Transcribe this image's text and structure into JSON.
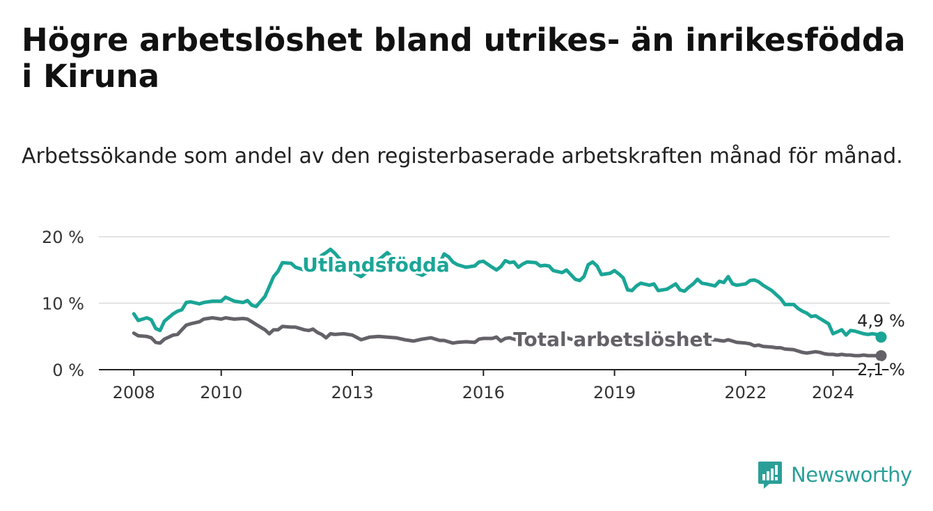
{
  "header": {
    "title": "Högre arbetslöshet bland utrikes- än inrikesfödda i Kiruna",
    "subtitle": "Arbetssökande som andel av den registerbaserade arbetskraften månad för månad."
  },
  "brand": {
    "name": "Newsworthy",
    "icon": "newsworthy-logo-icon",
    "color": "#2a9f98"
  },
  "chart_data": {
    "type": "line",
    "x_unit": "year (decimal)",
    "xlim": [
      2007.2,
      2025.3
    ],
    "ylim": [
      0,
      20
    ],
    "y_ticks": [
      0,
      10,
      20
    ],
    "y_tick_labels": [
      "0 %",
      "10 %",
      "20 %"
    ],
    "x_ticks": [
      2008,
      2010,
      2013,
      2016,
      2019,
      2022,
      2024
    ],
    "x_tick_labels": [
      "2008",
      "2010",
      "2013",
      "2016",
      "2019",
      "2022",
      "2024"
    ],
    "grid": "horizontal",
    "series": [
      {
        "name": "Utlandsfödda",
        "color": "#1aa596",
        "end_label": "4,9 %",
        "points": [
          [
            2008.0,
            8.4
          ],
          [
            2008.1,
            7.4
          ],
          [
            2008.3,
            7.8
          ],
          [
            2008.4,
            7.5
          ],
          [
            2008.5,
            6.2
          ],
          [
            2008.6,
            5.9
          ],
          [
            2008.7,
            7.3
          ],
          [
            2008.9,
            8.4
          ],
          [
            2009.0,
            8.8
          ],
          [
            2009.1,
            9.0
          ],
          [
            2009.2,
            10.1
          ],
          [
            2009.3,
            10.2
          ],
          [
            2009.5,
            9.9
          ],
          [
            2009.6,
            10.1
          ],
          [
            2009.8,
            10.3
          ],
          [
            2010.0,
            10.3
          ],
          [
            2010.1,
            10.9
          ],
          [
            2010.2,
            10.6
          ],
          [
            2010.3,
            10.3
          ],
          [
            2010.5,
            10.1
          ],
          [
            2010.6,
            10.4
          ],
          [
            2010.7,
            9.7
          ],
          [
            2010.8,
            9.5
          ],
          [
            2011.0,
            11.0
          ],
          [
            2011.1,
            12.5
          ],
          [
            2011.2,
            14.0
          ],
          [
            2011.3,
            14.8
          ],
          [
            2011.4,
            16.1
          ],
          [
            2011.6,
            16.0
          ],
          [
            2011.7,
            15.4
          ],
          [
            2011.9,
            15.0
          ],
          [
            2012.0,
            14.8
          ],
          [
            2012.1,
            15.4
          ],
          [
            2012.2,
            16.3
          ],
          [
            2012.3,
            17.2
          ],
          [
            2012.4,
            17.6
          ],
          [
            2012.5,
            18.1
          ],
          [
            2012.6,
            17.5
          ],
          [
            2012.8,
            16.0
          ],
          [
            2013.0,
            14.7
          ],
          [
            2013.2,
            14.0
          ],
          [
            2013.4,
            15.0
          ],
          [
            2013.6,
            16.5
          ],
          [
            2013.8,
            17.6
          ],
          [
            2014.0,
            16.3
          ],
          [
            2014.2,
            15.5
          ],
          [
            2014.4,
            14.7
          ],
          [
            2014.6,
            14.2
          ],
          [
            2014.8,
            15.0
          ],
          [
            2015.0,
            16.0
          ],
          [
            2015.1,
            17.4
          ],
          [
            2015.2,
            17.0
          ],
          [
            2015.3,
            16.2
          ],
          [
            2015.4,
            15.8
          ],
          [
            2015.6,
            15.4
          ],
          [
            2015.8,
            15.6
          ],
          [
            2015.9,
            16.2
          ],
          [
            2016.0,
            16.3
          ],
          [
            2016.2,
            15.4
          ],
          [
            2016.3,
            15.0
          ],
          [
            2016.4,
            15.5
          ],
          [
            2016.5,
            16.4
          ],
          [
            2016.6,
            16.1
          ],
          [
            2016.7,
            16.2
          ],
          [
            2016.8,
            15.4
          ],
          [
            2016.9,
            15.9
          ],
          [
            2017.0,
            16.2
          ],
          [
            2017.2,
            16.1
          ],
          [
            2017.3,
            15.6
          ],
          [
            2017.4,
            15.7
          ],
          [
            2017.5,
            15.6
          ],
          [
            2017.6,
            14.9
          ],
          [
            2017.8,
            14.6
          ],
          [
            2017.9,
            15.0
          ],
          [
            2018.1,
            13.6
          ],
          [
            2018.2,
            13.4
          ],
          [
            2018.3,
            14.0
          ],
          [
            2018.4,
            15.8
          ],
          [
            2018.5,
            16.2
          ],
          [
            2018.6,
            15.6
          ],
          [
            2018.7,
            14.3
          ],
          [
            2018.9,
            14.5
          ],
          [
            2019.0,
            14.9
          ],
          [
            2019.1,
            14.4
          ],
          [
            2019.2,
            13.8
          ],
          [
            2019.3,
            12.0
          ],
          [
            2019.4,
            11.9
          ],
          [
            2019.5,
            12.6
          ],
          [
            2019.6,
            13.0
          ],
          [
            2019.8,
            12.7
          ],
          [
            2019.9,
            12.9
          ],
          [
            2020.0,
            11.9
          ],
          [
            2020.2,
            12.1
          ],
          [
            2020.3,
            12.5
          ],
          [
            2020.4,
            12.9
          ],
          [
            2020.5,
            12.0
          ],
          [
            2020.6,
            11.8
          ],
          [
            2020.7,
            12.4
          ],
          [
            2020.8,
            12.9
          ],
          [
            2020.9,
            13.6
          ],
          [
            2021.0,
            13.0
          ],
          [
            2021.1,
            12.9
          ],
          [
            2021.3,
            12.6
          ],
          [
            2021.4,
            13.3
          ],
          [
            2021.5,
            13.1
          ],
          [
            2021.6,
            14.0
          ],
          [
            2021.7,
            12.9
          ],
          [
            2021.8,
            12.7
          ],
          [
            2022.0,
            12.9
          ],
          [
            2022.1,
            13.4
          ],
          [
            2022.2,
            13.5
          ],
          [
            2022.3,
            13.2
          ],
          [
            2022.4,
            12.7
          ],
          [
            2022.6,
            11.9
          ],
          [
            2022.7,
            11.3
          ],
          [
            2022.8,
            10.7
          ],
          [
            2022.9,
            9.8
          ],
          [
            2023.1,
            9.8
          ],
          [
            2023.2,
            9.2
          ],
          [
            2023.3,
            8.8
          ],
          [
            2023.4,
            8.5
          ],
          [
            2023.5,
            8.0
          ],
          [
            2023.6,
            8.1
          ],
          [
            2023.7,
            7.7
          ],
          [
            2023.8,
            7.3
          ],
          [
            2023.9,
            6.9
          ],
          [
            2024.0,
            5.4
          ],
          [
            2024.1,
            5.7
          ],
          [
            2024.2,
            6.0
          ],
          [
            2024.3,
            5.2
          ],
          [
            2024.4,
            5.9
          ],
          [
            2024.5,
            5.8
          ],
          [
            2024.6,
            5.6
          ],
          [
            2024.7,
            5.4
          ],
          [
            2024.8,
            5.3
          ],
          [
            2024.9,
            5.4
          ],
          [
            2025.0,
            5.3
          ],
          [
            2025.1,
            4.9
          ]
        ]
      },
      {
        "name": "Total arbetslöshet",
        "color": "#646268",
        "end_label": "2,1 %",
        "points": [
          [
            2008.0,
            5.5
          ],
          [
            2008.1,
            5.1
          ],
          [
            2008.3,
            5.0
          ],
          [
            2008.4,
            4.8
          ],
          [
            2008.5,
            4.1
          ],
          [
            2008.6,
            4.0
          ],
          [
            2008.7,
            4.6
          ],
          [
            2008.9,
            5.2
          ],
          [
            2009.0,
            5.3
          ],
          [
            2009.1,
            6.0
          ],
          [
            2009.2,
            6.7
          ],
          [
            2009.3,
            6.9
          ],
          [
            2009.5,
            7.2
          ],
          [
            2009.6,
            7.6
          ],
          [
            2009.8,
            7.8
          ],
          [
            2010.0,
            7.6
          ],
          [
            2010.1,
            7.8
          ],
          [
            2010.2,
            7.7
          ],
          [
            2010.3,
            7.6
          ],
          [
            2010.5,
            7.7
          ],
          [
            2010.6,
            7.6
          ],
          [
            2010.7,
            7.2
          ],
          [
            2010.8,
            6.8
          ],
          [
            2011.0,
            6.0
          ],
          [
            2011.1,
            5.4
          ],
          [
            2011.2,
            6.0
          ],
          [
            2011.3,
            6.0
          ],
          [
            2011.4,
            6.5
          ],
          [
            2011.6,
            6.4
          ],
          [
            2011.7,
            6.4
          ],
          [
            2011.9,
            6.0
          ],
          [
            2012.0,
            5.9
          ],
          [
            2012.1,
            6.1
          ],
          [
            2012.2,
            5.6
          ],
          [
            2012.3,
            5.3
          ],
          [
            2012.4,
            4.8
          ],
          [
            2012.5,
            5.4
          ],
          [
            2012.6,
            5.3
          ],
          [
            2012.8,
            5.4
          ],
          [
            2013.0,
            5.2
          ],
          [
            2013.2,
            4.5
          ],
          [
            2013.4,
            4.9
          ],
          [
            2013.6,
            5.0
          ],
          [
            2013.8,
            4.9
          ],
          [
            2014.0,
            4.8
          ],
          [
            2014.2,
            4.5
          ],
          [
            2014.4,
            4.3
          ],
          [
            2014.6,
            4.6
          ],
          [
            2014.8,
            4.8
          ],
          [
            2015.0,
            4.4
          ],
          [
            2015.1,
            4.4
          ],
          [
            2015.2,
            4.2
          ],
          [
            2015.3,
            4.0
          ],
          [
            2015.4,
            4.1
          ],
          [
            2015.6,
            4.2
          ],
          [
            2015.8,
            4.1
          ],
          [
            2015.9,
            4.6
          ],
          [
            2016.0,
            4.7
          ],
          [
            2016.2,
            4.7
          ],
          [
            2016.3,
            4.9
          ],
          [
            2016.4,
            4.3
          ],
          [
            2016.5,
            4.7
          ],
          [
            2016.6,
            4.8
          ],
          [
            2016.7,
            4.6
          ],
          [
            2016.8,
            4.4
          ],
          [
            2016.9,
            4.3
          ],
          [
            2017.0,
            4.6
          ],
          [
            2017.2,
            4.4
          ],
          [
            2017.3,
            4.5
          ],
          [
            2017.4,
            4.6
          ],
          [
            2017.5,
            4.7
          ],
          [
            2017.6,
            4.8
          ],
          [
            2017.8,
            4.7
          ],
          [
            2017.9,
            4.8
          ],
          [
            2018.1,
            4.4
          ],
          [
            2018.2,
            4.5
          ],
          [
            2018.3,
            4.6
          ],
          [
            2018.4,
            4.5
          ],
          [
            2018.5,
            4.8
          ],
          [
            2018.6,
            4.9
          ],
          [
            2018.7,
            4.6
          ],
          [
            2018.9,
            4.7
          ],
          [
            2019.0,
            4.7
          ],
          [
            2019.1,
            4.6
          ],
          [
            2019.2,
            4.5
          ],
          [
            2019.3,
            4.4
          ],
          [
            2019.4,
            4.5
          ],
          [
            2019.5,
            4.4
          ],
          [
            2019.6,
            4.3
          ],
          [
            2019.8,
            4.4
          ],
          [
            2019.9,
            4.5
          ],
          [
            2020.0,
            4.4
          ],
          [
            2020.2,
            4.3
          ],
          [
            2020.3,
            4.3
          ],
          [
            2020.4,
            4.2
          ],
          [
            2020.5,
            4.3
          ],
          [
            2020.6,
            4.4
          ],
          [
            2020.7,
            4.3
          ],
          [
            2020.8,
            4.4
          ],
          [
            2020.9,
            4.5
          ],
          [
            2021.0,
            4.3
          ],
          [
            2021.1,
            4.4
          ],
          [
            2021.3,
            4.5
          ],
          [
            2021.4,
            4.4
          ],
          [
            2021.5,
            4.3
          ],
          [
            2021.6,
            4.5
          ],
          [
            2021.7,
            4.3
          ],
          [
            2021.8,
            4.1
          ],
          [
            2022.0,
            4.0
          ],
          [
            2022.1,
            3.9
          ],
          [
            2022.2,
            3.6
          ],
          [
            2022.3,
            3.7
          ],
          [
            2022.4,
            3.5
          ],
          [
            2022.6,
            3.4
          ],
          [
            2022.7,
            3.3
          ],
          [
            2022.8,
            3.3
          ],
          [
            2022.9,
            3.1
          ],
          [
            2023.1,
            3.0
          ],
          [
            2023.2,
            2.8
          ],
          [
            2023.3,
            2.6
          ],
          [
            2023.4,
            2.5
          ],
          [
            2023.5,
            2.6
          ],
          [
            2023.6,
            2.7
          ],
          [
            2023.7,
            2.6
          ],
          [
            2023.8,
            2.4
          ],
          [
            2023.9,
            2.3
          ],
          [
            2024.0,
            2.3
          ],
          [
            2024.1,
            2.2
          ],
          [
            2024.2,
            2.3
          ],
          [
            2024.3,
            2.2
          ],
          [
            2024.4,
            2.2
          ],
          [
            2024.5,
            2.1
          ],
          [
            2024.6,
            2.1
          ],
          [
            2024.7,
            2.2
          ],
          [
            2024.8,
            2.1
          ],
          [
            2024.9,
            2.1
          ],
          [
            2025.0,
            2.1
          ],
          [
            2025.1,
            2.1
          ]
        ]
      }
    ]
  }
}
